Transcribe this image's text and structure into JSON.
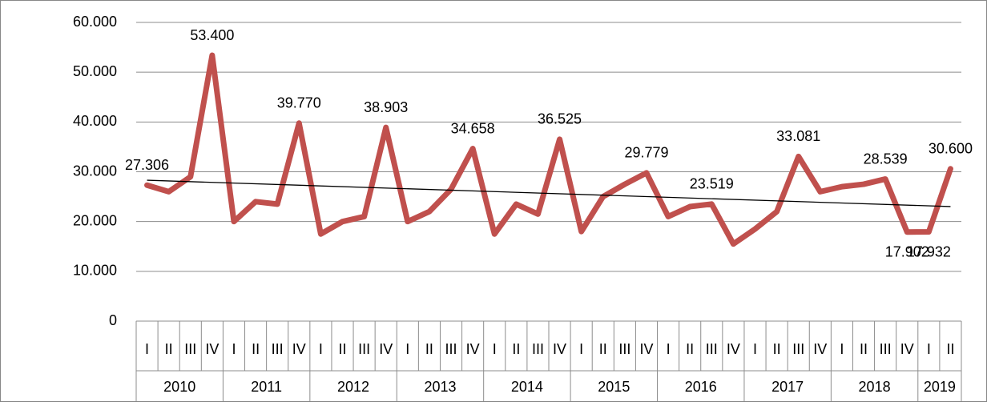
{
  "chart_data": {
    "type": "line",
    "categories": [
      "I",
      "II",
      "III",
      "IV",
      "I",
      "II",
      "III",
      "IV",
      "I",
      "II",
      "III",
      "IV",
      "I",
      "II",
      "III",
      "IV",
      "I",
      "II",
      "III",
      "IV",
      "I",
      "II",
      "III",
      "IV",
      "I",
      "II",
      "III",
      "IV",
      "I",
      "II",
      "III",
      "IV",
      "I",
      "II",
      "III",
      "IV",
      "I",
      "II"
    ],
    "years": [
      "2010",
      "2011",
      "2012",
      "2013",
      "2014",
      "2015",
      "2016",
      "2017",
      "2018",
      "2019"
    ],
    "series": [
      {
        "color": "#c0504d",
        "values": [
          27306,
          26000,
          29000,
          53400,
          20000,
          24000,
          23500,
          39770,
          17500,
          20000,
          21000,
          38903,
          20000,
          22000,
          26500,
          34658,
          17500,
          23500,
          21500,
          36525,
          18000,
          25000,
          27500,
          29779,
          21000,
          23000,
          23519,
          15500,
          18500,
          22000,
          33081,
          26000,
          27000,
          27500,
          28539,
          17902,
          17932,
          30600
        ],
        "value_labels": [
          "27.306",
          null,
          null,
          "53.400",
          null,
          null,
          null,
          "39.770",
          null,
          null,
          null,
          "38.903",
          null,
          null,
          null,
          "34.658",
          null,
          null,
          null,
          "36.525",
          null,
          null,
          null,
          "29.779",
          null,
          null,
          "23.519",
          null,
          null,
          null,
          "33.081",
          null,
          null,
          null,
          "28.539",
          "17.902",
          "17.932",
          "30.600"
        ]
      }
    ],
    "ylim": [
      0,
      60000
    ],
    "yticks": [
      0,
      {
        "value": 10000,
        "label": "10.000"
      },
      {
        "value": 20000,
        "label": "20.000"
      },
      {
        "value": 30000,
        "label": "30.000"
      },
      {
        "value": 40000,
        "label": "40.000"
      },
      {
        "value": 50000,
        "label": "50.000"
      },
      {
        "value": 60000,
        "label": "60.000"
      }
    ],
    "grid": true,
    "trendline": true,
    "trendline_color": "#000000"
  }
}
